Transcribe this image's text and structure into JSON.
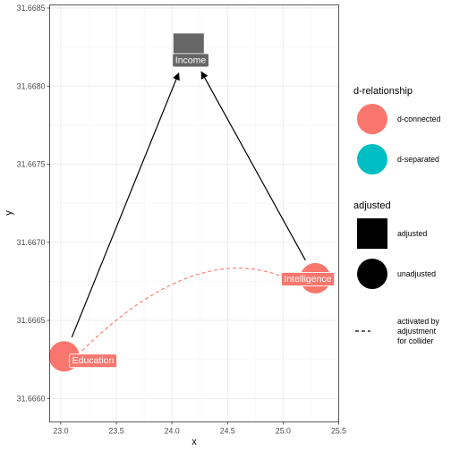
{
  "axes": {
    "x_title": "x",
    "y_title": "y",
    "x_range": [
      22.9,
      25.5
    ],
    "y_range": [
      31.66585,
      31.66852
    ],
    "x_ticks": [
      23.0,
      23.5,
      24.0,
      24.5,
      25.0,
      25.5
    ],
    "x_tick_labels": [
      "23.0",
      "23.5",
      "24.0",
      "24.5",
      "25.0",
      "25.5"
    ],
    "y_ticks": [
      31.666,
      31.6665,
      31.667,
      31.6675,
      31.668,
      31.6685
    ],
    "y_tick_labels": [
      "31.6660",
      "31.6665",
      "31.6670",
      "31.6675",
      "31.6680",
      "31.6685"
    ]
  },
  "nodes": [
    {
      "id": "education",
      "label": "Education",
      "x": 23.03,
      "y": 31.66627,
      "relationship": "d-connected",
      "adjusted": false
    },
    {
      "id": "income",
      "label": "Income",
      "x": 24.15,
      "y": 31.66824,
      "relationship": "none",
      "adjusted": true
    },
    {
      "id": "intelligence",
      "label": "Intelligence",
      "x": 25.29,
      "y": 31.66677,
      "relationship": "d-connected",
      "adjusted": false
    }
  ],
  "edges": [
    {
      "from": "education",
      "to": "income",
      "type": "directed"
    },
    {
      "from": "intelligence",
      "to": "income",
      "type": "directed"
    },
    {
      "from": "education",
      "to": "intelligence",
      "type": "collider-path"
    }
  ],
  "legend": {
    "relationship": {
      "title": "d-relationship",
      "items": [
        {
          "label": "d-connected",
          "color": "#F8766D"
        },
        {
          "label": "d-separated",
          "color": "#00BFC4"
        }
      ]
    },
    "adjusted": {
      "title": "adjusted",
      "items": [
        {
          "label": "adjusted",
          "shape": "square"
        },
        {
          "label": "unadjusted",
          "shape": "circle"
        }
      ]
    },
    "collider": {
      "label_lines": [
        "activated by",
        "adjustment",
        "for collider"
      ]
    }
  },
  "colors": {
    "d_connected": "#F8766D",
    "d_separated": "#00BFC4",
    "adjusted_node": "#666666",
    "label_bg_adjusted": "#666666",
    "panel_border": "#333333",
    "grid_major": "#ebebeb",
    "grid_minor": "#f5f5f5"
  }
}
